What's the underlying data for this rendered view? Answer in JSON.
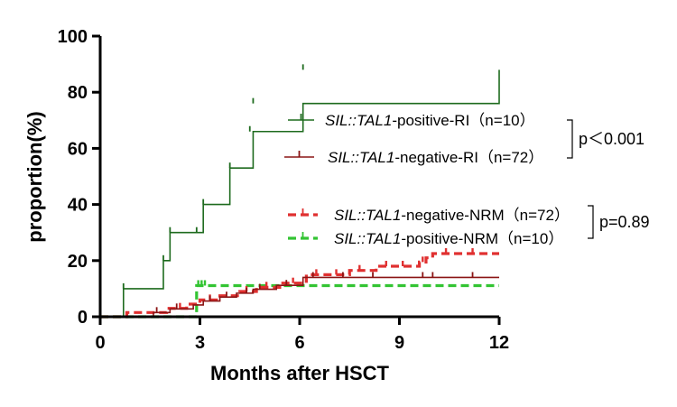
{
  "chart_data": {
    "type": "line",
    "subtype": "kaplan-meier-cumulative-incidence",
    "title": "",
    "xlabel": "Months after HSCT",
    "ylabel": "proportion(%)",
    "xlim": [
      0,
      12
    ],
    "ylim": [
      0,
      100
    ],
    "x_ticks": [
      "0",
      "3",
      "6",
      "9",
      "12"
    ],
    "y_ticks": [
      "0",
      "20",
      "40",
      "60",
      "80",
      "100"
    ],
    "grid": false,
    "legend_position": "right",
    "series": [
      {
        "key": "pos_ri",
        "gene": "SIL::TAL1",
        "label_suffix": "-positive-RI（n=10）",
        "color": "#1e6b1e",
        "dash": "solid",
        "x": [
          0,
          0.7,
          1.9,
          2.1,
          3.1,
          3.9,
          4.6,
          6.1,
          12
        ],
        "y": [
          0,
          10,
          20,
          30,
          40,
          53,
          66,
          76,
          88
        ],
        "censor_x": [
          0.7,
          1.9,
          2.1,
          2.9,
          3.1,
          3.9,
          4.5,
          4.6,
          6.1
        ],
        "censor_y": [
          10,
          20,
          30,
          30,
          40,
          53,
          66,
          76,
          88
        ]
      },
      {
        "key": "neg_ri",
        "gene": "SIL::TAL1",
        "label_suffix": "-negative-RI（n=72）",
        "color": "#8b1515",
        "dash": "solid",
        "x": [
          0,
          1.6,
          2.1,
          2.8,
          3.1,
          3.6,
          4.1,
          4.6,
          5.3,
          6.1,
          12
        ],
        "y": [
          0,
          1.5,
          2.8,
          4.2,
          5.6,
          7.0,
          8.4,
          9.8,
          11.2,
          14.0,
          14.0
        ],
        "censor_x": [
          1.7,
          2.3,
          3.3,
          3.8,
          4.4,
          4.8,
          5.6,
          6.4,
          7.3,
          8.2,
          9.7,
          10.0,
          11.2
        ],
        "censor_y": [
          1.5,
          2.8,
          5.6,
          7.0,
          8.4,
          9.8,
          11.2,
          14.0,
          14.0,
          14.0,
          14.0,
          14.0,
          14.0
        ]
      },
      {
        "key": "neg_nrm",
        "gene": "SIL::TAL1",
        "label_suffix": "-negative-NRM（n=72）",
        "color": "#e03030",
        "dash": "dashed",
        "x": [
          0,
          0.8,
          2.0,
          2.6,
          3.0,
          3.6,
          4.2,
          4.7,
          5.4,
          6.2,
          7.5,
          8.3,
          9.6,
          9.8,
          10.0,
          12
        ],
        "y": [
          0,
          1.5,
          3.0,
          4.5,
          6.0,
          7.5,
          9.0,
          10.5,
          12.0,
          15.0,
          16.5,
          18.0,
          19.5,
          21.0,
          22.5,
          22.5
        ],
        "censor_x": [
          2.4,
          3.3,
          4.4,
          5.0,
          5.8,
          6.5,
          7.1,
          7.8,
          8.6,
          9.1,
          9.7,
          10.4,
          11.2
        ],
        "censor_y": [
          3.0,
          6.0,
          9.0,
          10.5,
          12.0,
          15.0,
          15.0,
          16.5,
          18.0,
          18.0,
          19.5,
          22.5,
          22.5
        ]
      },
      {
        "key": "pos_nrm",
        "gene": "SIL::TAL1",
        "label_suffix": "-positive-NRM（n=10）",
        "color": "#33c433",
        "dash": "dashed",
        "x": [
          0,
          2.9,
          12
        ],
        "y": [
          0,
          11.1,
          11.1
        ],
        "censor_x": [
          2.95,
          3.05,
          3.15
        ],
        "censor_y": [
          11.1,
          11.1,
          11.1
        ]
      }
    ],
    "legend_order": [
      "pos_ri",
      "neg_ri",
      "neg_nrm",
      "pos_nrm"
    ],
    "annotations": [
      {
        "text": "p＜0.001",
        "groups": [
          "pos_ri",
          "neg_ri"
        ]
      },
      {
        "text": "p=0.89",
        "groups": [
          "neg_nrm",
          "pos_nrm"
        ]
      }
    ]
  }
}
